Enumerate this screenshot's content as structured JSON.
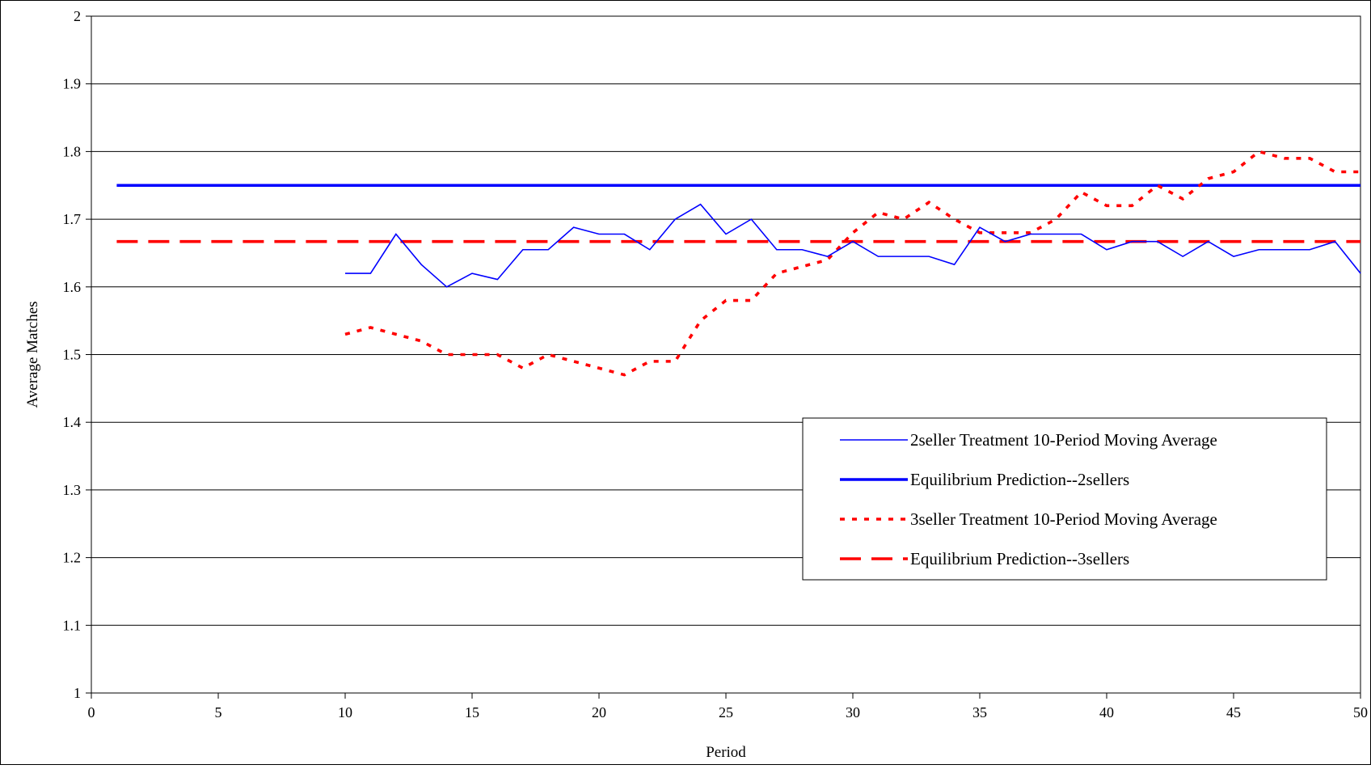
{
  "chart_data": {
    "type": "line",
    "xlabel": "Period",
    "ylabel": "Average Matches",
    "xlim": [
      0,
      50
    ],
    "ylim": [
      1,
      2
    ],
    "x_ticks": [
      "0",
      "5",
      "10",
      "15",
      "20",
      "25",
      "30",
      "35",
      "40",
      "45",
      "50"
    ],
    "y_ticks": [
      "1",
      "1.1",
      "1.2",
      "1.3",
      "1.4",
      "1.5",
      "1.6",
      "1.7",
      "1.8",
      "1.9",
      "2"
    ],
    "grid": "horizontal",
    "legend_position": "bottom-right",
    "series": [
      {
        "name": "2seller Treatment 10-Period Moving Average",
        "color": "#0000FF",
        "style": "thin-solid",
        "x": [
          10,
          11,
          12,
          13,
          14,
          15,
          16,
          17,
          18,
          19,
          20,
          21,
          22,
          23,
          24,
          25,
          26,
          27,
          28,
          29,
          30,
          31,
          32,
          33,
          34,
          35,
          36,
          37,
          38,
          39,
          40,
          41,
          42,
          43,
          44,
          45,
          46,
          47,
          48,
          49,
          50
        ],
        "y": [
          1.62,
          1.62,
          1.678,
          1.633,
          1.6,
          1.62,
          1.611,
          1.655,
          1.655,
          1.688,
          1.678,
          1.678,
          1.655,
          1.7,
          1.722,
          1.678,
          1.7,
          1.655,
          1.655,
          1.645,
          1.667,
          1.645,
          1.645,
          1.645,
          1.633,
          1.688,
          1.667,
          1.678,
          1.678,
          1.678,
          1.655,
          1.667,
          1.667,
          1.645,
          1.667,
          1.645,
          1.655,
          1.655,
          1.655,
          1.667,
          1.62
        ]
      },
      {
        "name": "Equilibrium Prediction--2sellers",
        "color": "#0000FF",
        "style": "thick-solid",
        "x": [
          1,
          50
        ],
        "y": [
          1.75,
          1.75
        ]
      },
      {
        "name": "3seller Treatment 10-Period Moving Average",
        "color": "#FF0000",
        "style": "dotted",
        "x": [
          10,
          11,
          12,
          13,
          14,
          15,
          16,
          17,
          18,
          19,
          20,
          21,
          22,
          23,
          24,
          25,
          26,
          27,
          28,
          29,
          30,
          31,
          32,
          33,
          34,
          35,
          36,
          37,
          38,
          39,
          40,
          41,
          42,
          43,
          44,
          45,
          46,
          47,
          48,
          49,
          50
        ],
        "y": [
          1.53,
          1.54,
          1.53,
          1.52,
          1.5,
          1.5,
          1.5,
          1.48,
          1.5,
          1.49,
          1.48,
          1.47,
          1.49,
          1.49,
          1.55,
          1.58,
          1.58,
          1.62,
          1.63,
          1.64,
          1.68,
          1.71,
          1.7,
          1.725,
          1.7,
          1.68,
          1.68,
          1.68,
          1.7,
          1.74,
          1.72,
          1.72,
          1.75,
          1.73,
          1.76,
          1.77,
          1.8,
          1.79,
          1.79,
          1.77,
          1.77
        ]
      },
      {
        "name": "Equilibrium Prediction--3sellers",
        "color": "#FF0000",
        "style": "dashed",
        "x": [
          1,
          50
        ],
        "y": [
          1.667,
          1.667
        ]
      }
    ]
  }
}
